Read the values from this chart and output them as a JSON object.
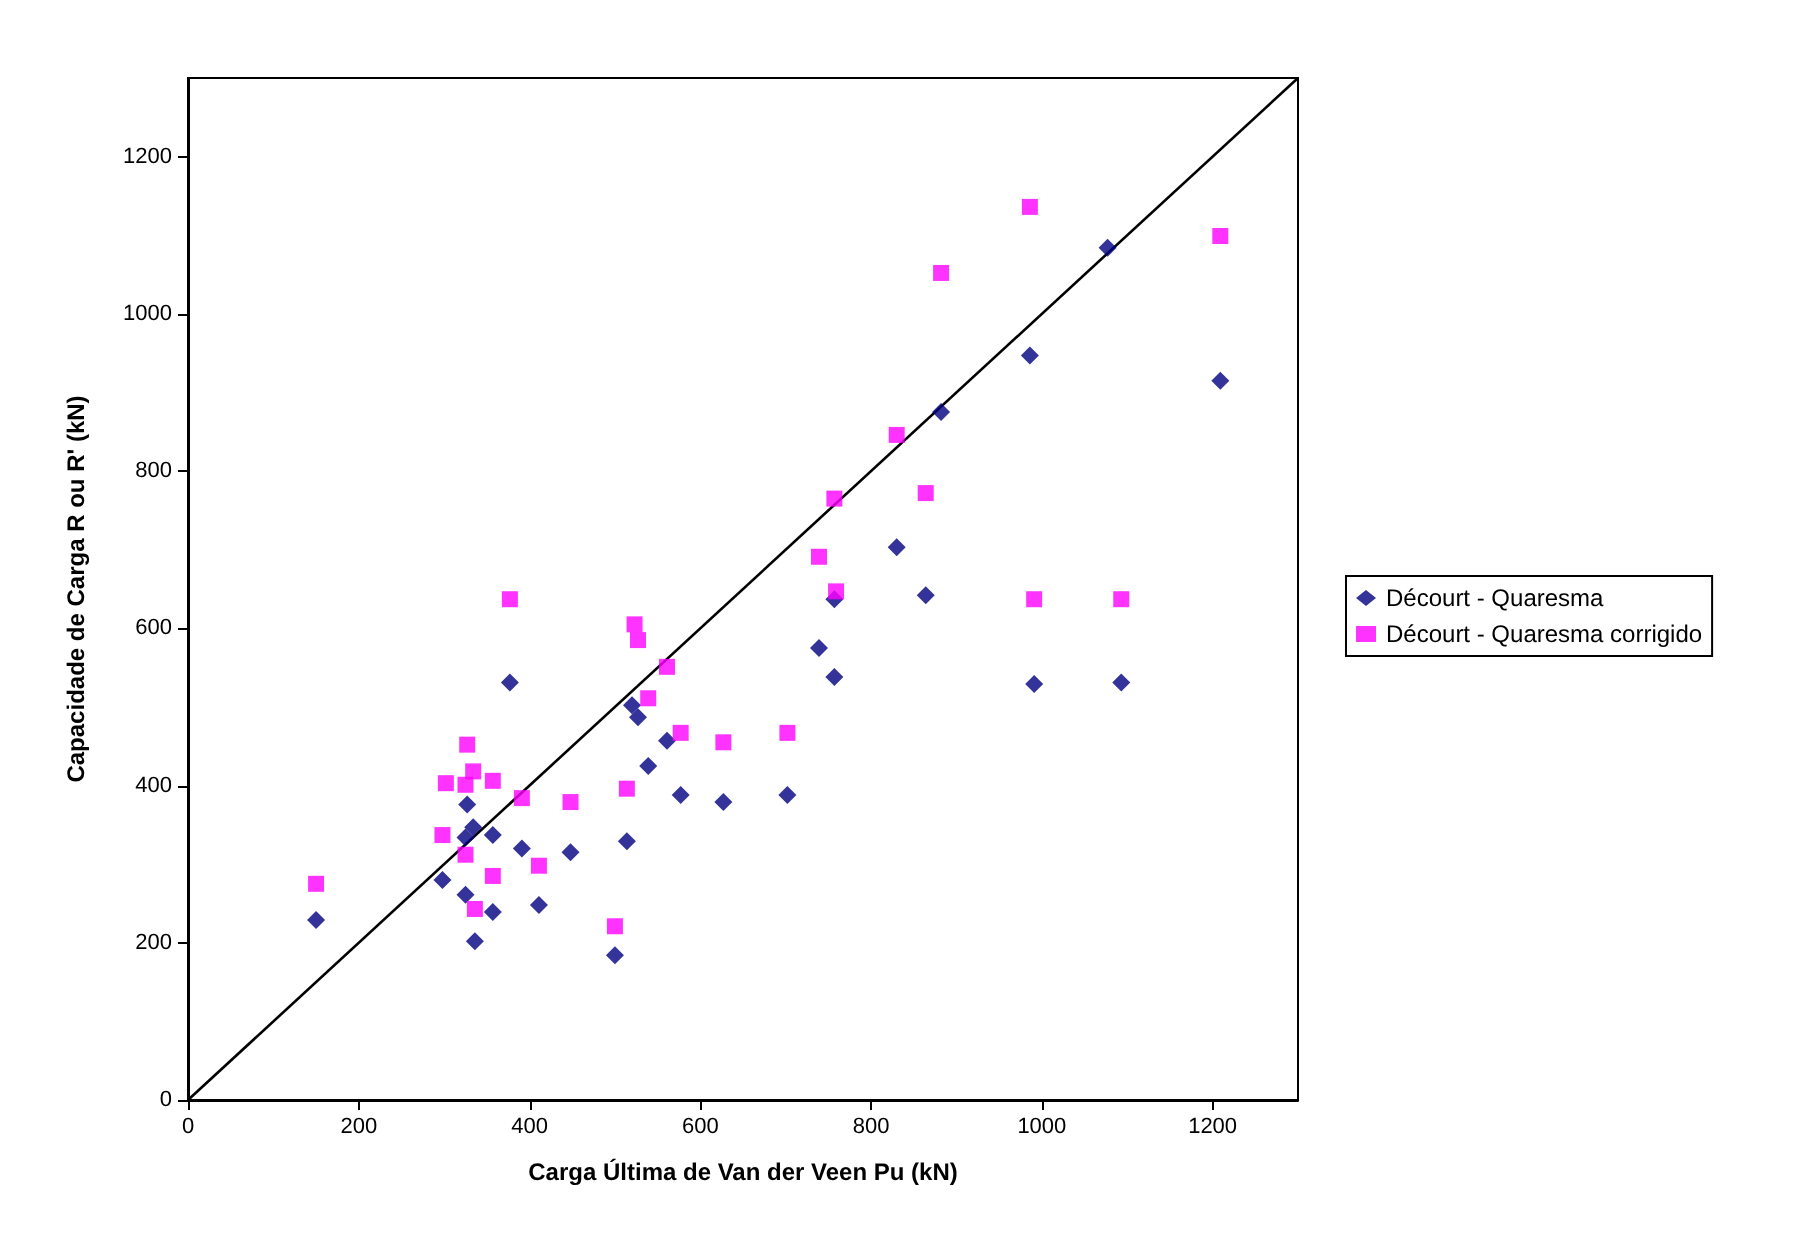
{
  "chart_data": {
    "type": "scatter",
    "xlabel": "Carga Última de Van der Veen Pu (kN)",
    "ylabel": "Capacidade de Carga R ou R' (kN)",
    "xlim": [
      0,
      1300
    ],
    "ylim": [
      0,
      1300
    ],
    "xticks": [
      0,
      200,
      400,
      600,
      800,
      1000,
      1200
    ],
    "yticks": [
      0,
      200,
      400,
      600,
      800,
      1000,
      1200
    ],
    "grid": false,
    "legend": "right",
    "series": [
      {
        "name": "Décourt - Quaresma",
        "color": "#000080",
        "marker": "diamond",
        "x": [
          150,
          298,
          325,
          336,
          357,
          325,
          334,
          357,
          327,
          377,
          391,
          411,
          448,
          500,
          514,
          539,
          520,
          527,
          561,
          577,
          627,
          830,
          757,
          864,
          739,
          757,
          991,
          1093,
          702,
          1077,
          986,
          882,
          1209
        ],
        "values": [
          229,
          280,
          261,
          202,
          239,
          334,
          347,
          337,
          376,
          531,
          320,
          248,
          315,
          184,
          329,
          425,
          502,
          487,
          457,
          388,
          379,
          703,
          637,
          642,
          575,
          538,
          529,
          531,
          388,
          1084,
          947,
          875,
          915
        ]
      },
      {
        "name": "Décourt - Quaresma corrigido",
        "color": "#ff00ff",
        "marker": "square",
        "x": [
          150,
          377,
          523,
          527,
          561,
          539,
          577,
          627,
          327,
          334,
          302,
          325,
          357,
          391,
          448,
          514,
          298,
          325,
          357,
          411,
          336,
          500,
          739,
          759,
          991,
          1093,
          702,
          986,
          882,
          1209,
          830,
          757,
          864
        ],
        "values": [
          275,
          637,
          605,
          585,
          551,
          511,
          467,
          455,
          452,
          418,
          403,
          401,
          406,
          384,
          379,
          396,
          337,
          312,
          285,
          298,
          243,
          221,
          691,
          647,
          637,
          637,
          467,
          1136,
          1052,
          1099,
          846,
          765,
          772
        ]
      },
      {
        "type": "line",
        "color": "#000000",
        "marker": "none",
        "line_style": "solid",
        "x": [
          0,
          1300
        ],
        "values": [
          0,
          1300
        ]
      }
    ]
  }
}
